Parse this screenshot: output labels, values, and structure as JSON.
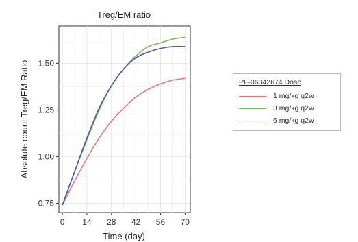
{
  "chart_data": {
    "type": "line",
    "title": "Treg/EM ratio",
    "xlabel": "Time (day)",
    "ylabel": "Absolute count Treg/EM Ratio",
    "xlim": [
      -2,
      73
    ],
    "ylim": [
      0.7,
      1.7
    ],
    "xticks": [
      0,
      14,
      28,
      42,
      56,
      70
    ],
    "yticks": [
      0.75,
      1.0,
      1.25,
      1.5
    ],
    "ytick_labels": [
      "0.75",
      "1.00",
      "1.25",
      "1.50"
    ],
    "grid": true,
    "legend": {
      "title": "PF-06342674 Dose",
      "position": "right"
    },
    "series": [
      {
        "name": "1 mg/kg q2w",
        "color": "#f0707a",
        "x": [
          0,
          7,
          14,
          21,
          28,
          35,
          42,
          49,
          56,
          63,
          70
        ],
        "y": [
          0.74,
          0.87,
          0.99,
          1.1,
          1.19,
          1.26,
          1.32,
          1.36,
          1.39,
          1.41,
          1.42
        ]
      },
      {
        "name": "3 mg/kg q2w",
        "color": "#7ab85a",
        "x": [
          0,
          7,
          14,
          21,
          28,
          35,
          42,
          49,
          56,
          63,
          70
        ],
        "y": [
          0.74,
          0.92,
          1.09,
          1.25,
          1.38,
          1.47,
          1.54,
          1.59,
          1.61,
          1.63,
          1.64
        ]
      },
      {
        "name": "6 mg/kg q2w",
        "color": "#4a5aa8",
        "x": [
          0,
          7,
          14,
          21,
          28,
          35,
          42,
          49,
          56,
          63,
          70
        ],
        "y": [
          0.74,
          0.92,
          1.1,
          1.26,
          1.38,
          1.47,
          1.53,
          1.56,
          1.58,
          1.59,
          1.59
        ]
      }
    ]
  }
}
